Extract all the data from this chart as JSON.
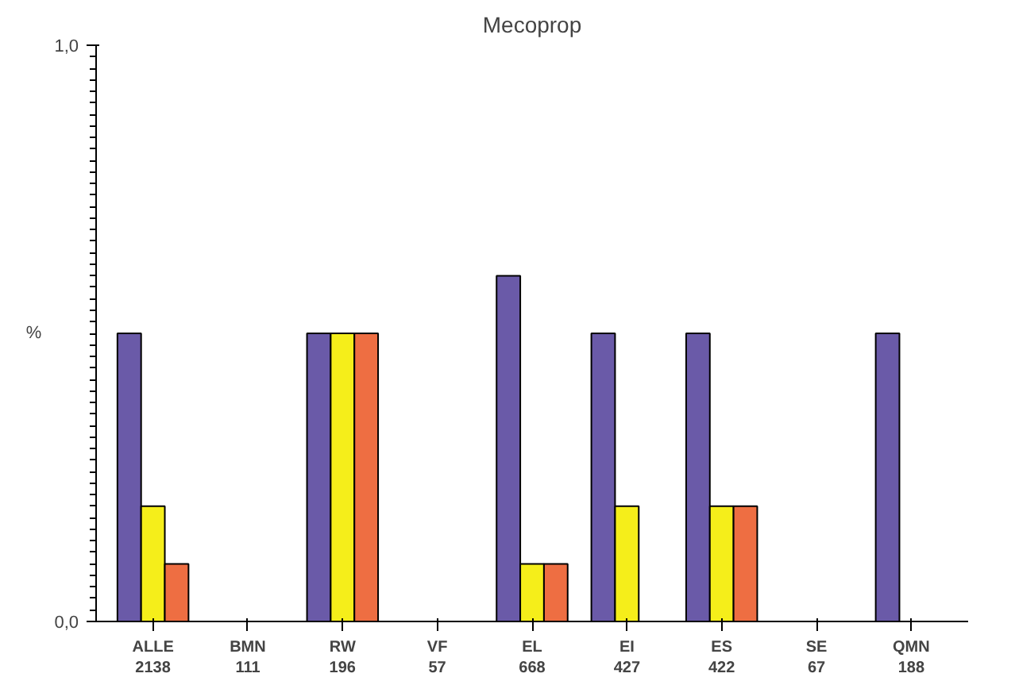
{
  "chart_data": {
    "type": "bar",
    "title": "Mecoprop",
    "ylabel": "%",
    "categories": [
      "ALLE\n2138",
      "BMN\n111",
      "RW\n196",
      "VF\n57",
      "EL\n668",
      "EI\n427",
      "ES\n422",
      "SE\n67",
      "QMN\n188"
    ],
    "series": [
      {
        "color": "#6a5aa8",
        "values": [
          0.5,
          null,
          0.5,
          null,
          0.6,
          0.5,
          0.5,
          null,
          0.5
        ]
      },
      {
        "color": "#f5ee1a",
        "values": [
          0.2,
          null,
          0.5,
          null,
          0.1,
          0.2,
          0.2,
          null,
          null
        ]
      },
      {
        "color": "#ee6e42",
        "values": [
          0.1,
          null,
          0.5,
          null,
          0.1,
          null,
          0.2,
          null,
          null
        ]
      }
    ],
    "ylim": [
      0,
      1.0
    ],
    "yticks": [
      {
        "value": 0,
        "label": "0,0"
      },
      {
        "value": 1.0,
        "label": "1,0"
      }
    ],
    "grid": false
  }
}
